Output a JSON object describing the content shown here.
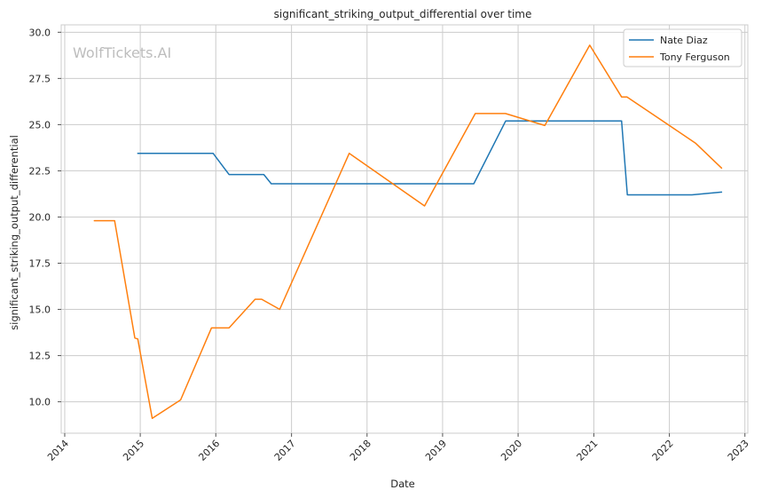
{
  "watermark": "WolfTickets.AI",
  "chart_data": {
    "type": "line",
    "title": "significant_striking_output_differential over time",
    "xlabel": "Date",
    "ylabel": "significant_striking_output_differential",
    "x_type": "date",
    "xlim": [
      "2013-12-15",
      "2023-01-15"
    ],
    "ylim": [
      8.3,
      30.4
    ],
    "x_ticks": [
      "2014-01-01",
      "2015-01-01",
      "2016-01-01",
      "2017-01-01",
      "2018-01-01",
      "2019-01-01",
      "2020-01-01",
      "2021-01-01",
      "2022-01-01",
      "2023-01-01"
    ],
    "x_tick_labels": [
      "2014",
      "2015",
      "2016",
      "2017",
      "2018",
      "2019",
      "2020",
      "2021",
      "2022",
      "2023"
    ],
    "y_ticks": [
      10.0,
      12.5,
      15.0,
      17.5,
      20.0,
      22.5,
      25.0,
      27.5,
      30.0
    ],
    "y_tick_labels": [
      "10.0",
      "12.5",
      "15.0",
      "17.5",
      "20.0",
      "22.5",
      "25.0",
      "27.5",
      "30.0"
    ],
    "grid": true,
    "legend_position": "top-right",
    "series": [
      {
        "name": "Nate Diaz",
        "color": "#1f77b4",
        "points": [
          [
            "2014-12-20",
            23.45
          ],
          [
            "2015-12-19",
            23.45
          ],
          [
            "2016-03-05",
            22.3
          ],
          [
            "2016-08-20",
            22.3
          ],
          [
            "2016-09-25",
            21.8
          ],
          [
            "2019-06-01",
            21.8
          ],
          [
            "2019-11-02",
            25.2
          ],
          [
            "2021-05-15",
            25.2
          ],
          [
            "2021-06-12",
            21.2
          ],
          [
            "2022-04-20",
            21.2
          ],
          [
            "2022-09-10",
            21.35
          ]
        ]
      },
      {
        "name": "Tony Ferguson",
        "color": "#ff7f0e",
        "points": [
          [
            "2014-05-24",
            19.8
          ],
          [
            "2014-08-30",
            19.8
          ],
          [
            "2014-12-06",
            13.45
          ],
          [
            "2014-12-20",
            13.4
          ],
          [
            "2015-02-28",
            9.1
          ],
          [
            "2015-07-15",
            10.1
          ],
          [
            "2015-12-11",
            14.0
          ],
          [
            "2016-03-05",
            14.0
          ],
          [
            "2016-07-09",
            15.55
          ],
          [
            "2016-08-10",
            15.55
          ],
          [
            "2016-11-05",
            15.0
          ],
          [
            "2017-10-07",
            23.45
          ],
          [
            "2018-10-06",
            20.6
          ],
          [
            "2019-06-08",
            25.6
          ],
          [
            "2019-11-01",
            25.6
          ],
          [
            "2020-05-09",
            24.95
          ],
          [
            "2020-12-12",
            29.3
          ],
          [
            "2021-05-15",
            26.5
          ],
          [
            "2021-06-10",
            26.5
          ],
          [
            "2022-05-07",
            24.0
          ],
          [
            "2022-09-10",
            22.65
          ]
        ]
      }
    ]
  }
}
